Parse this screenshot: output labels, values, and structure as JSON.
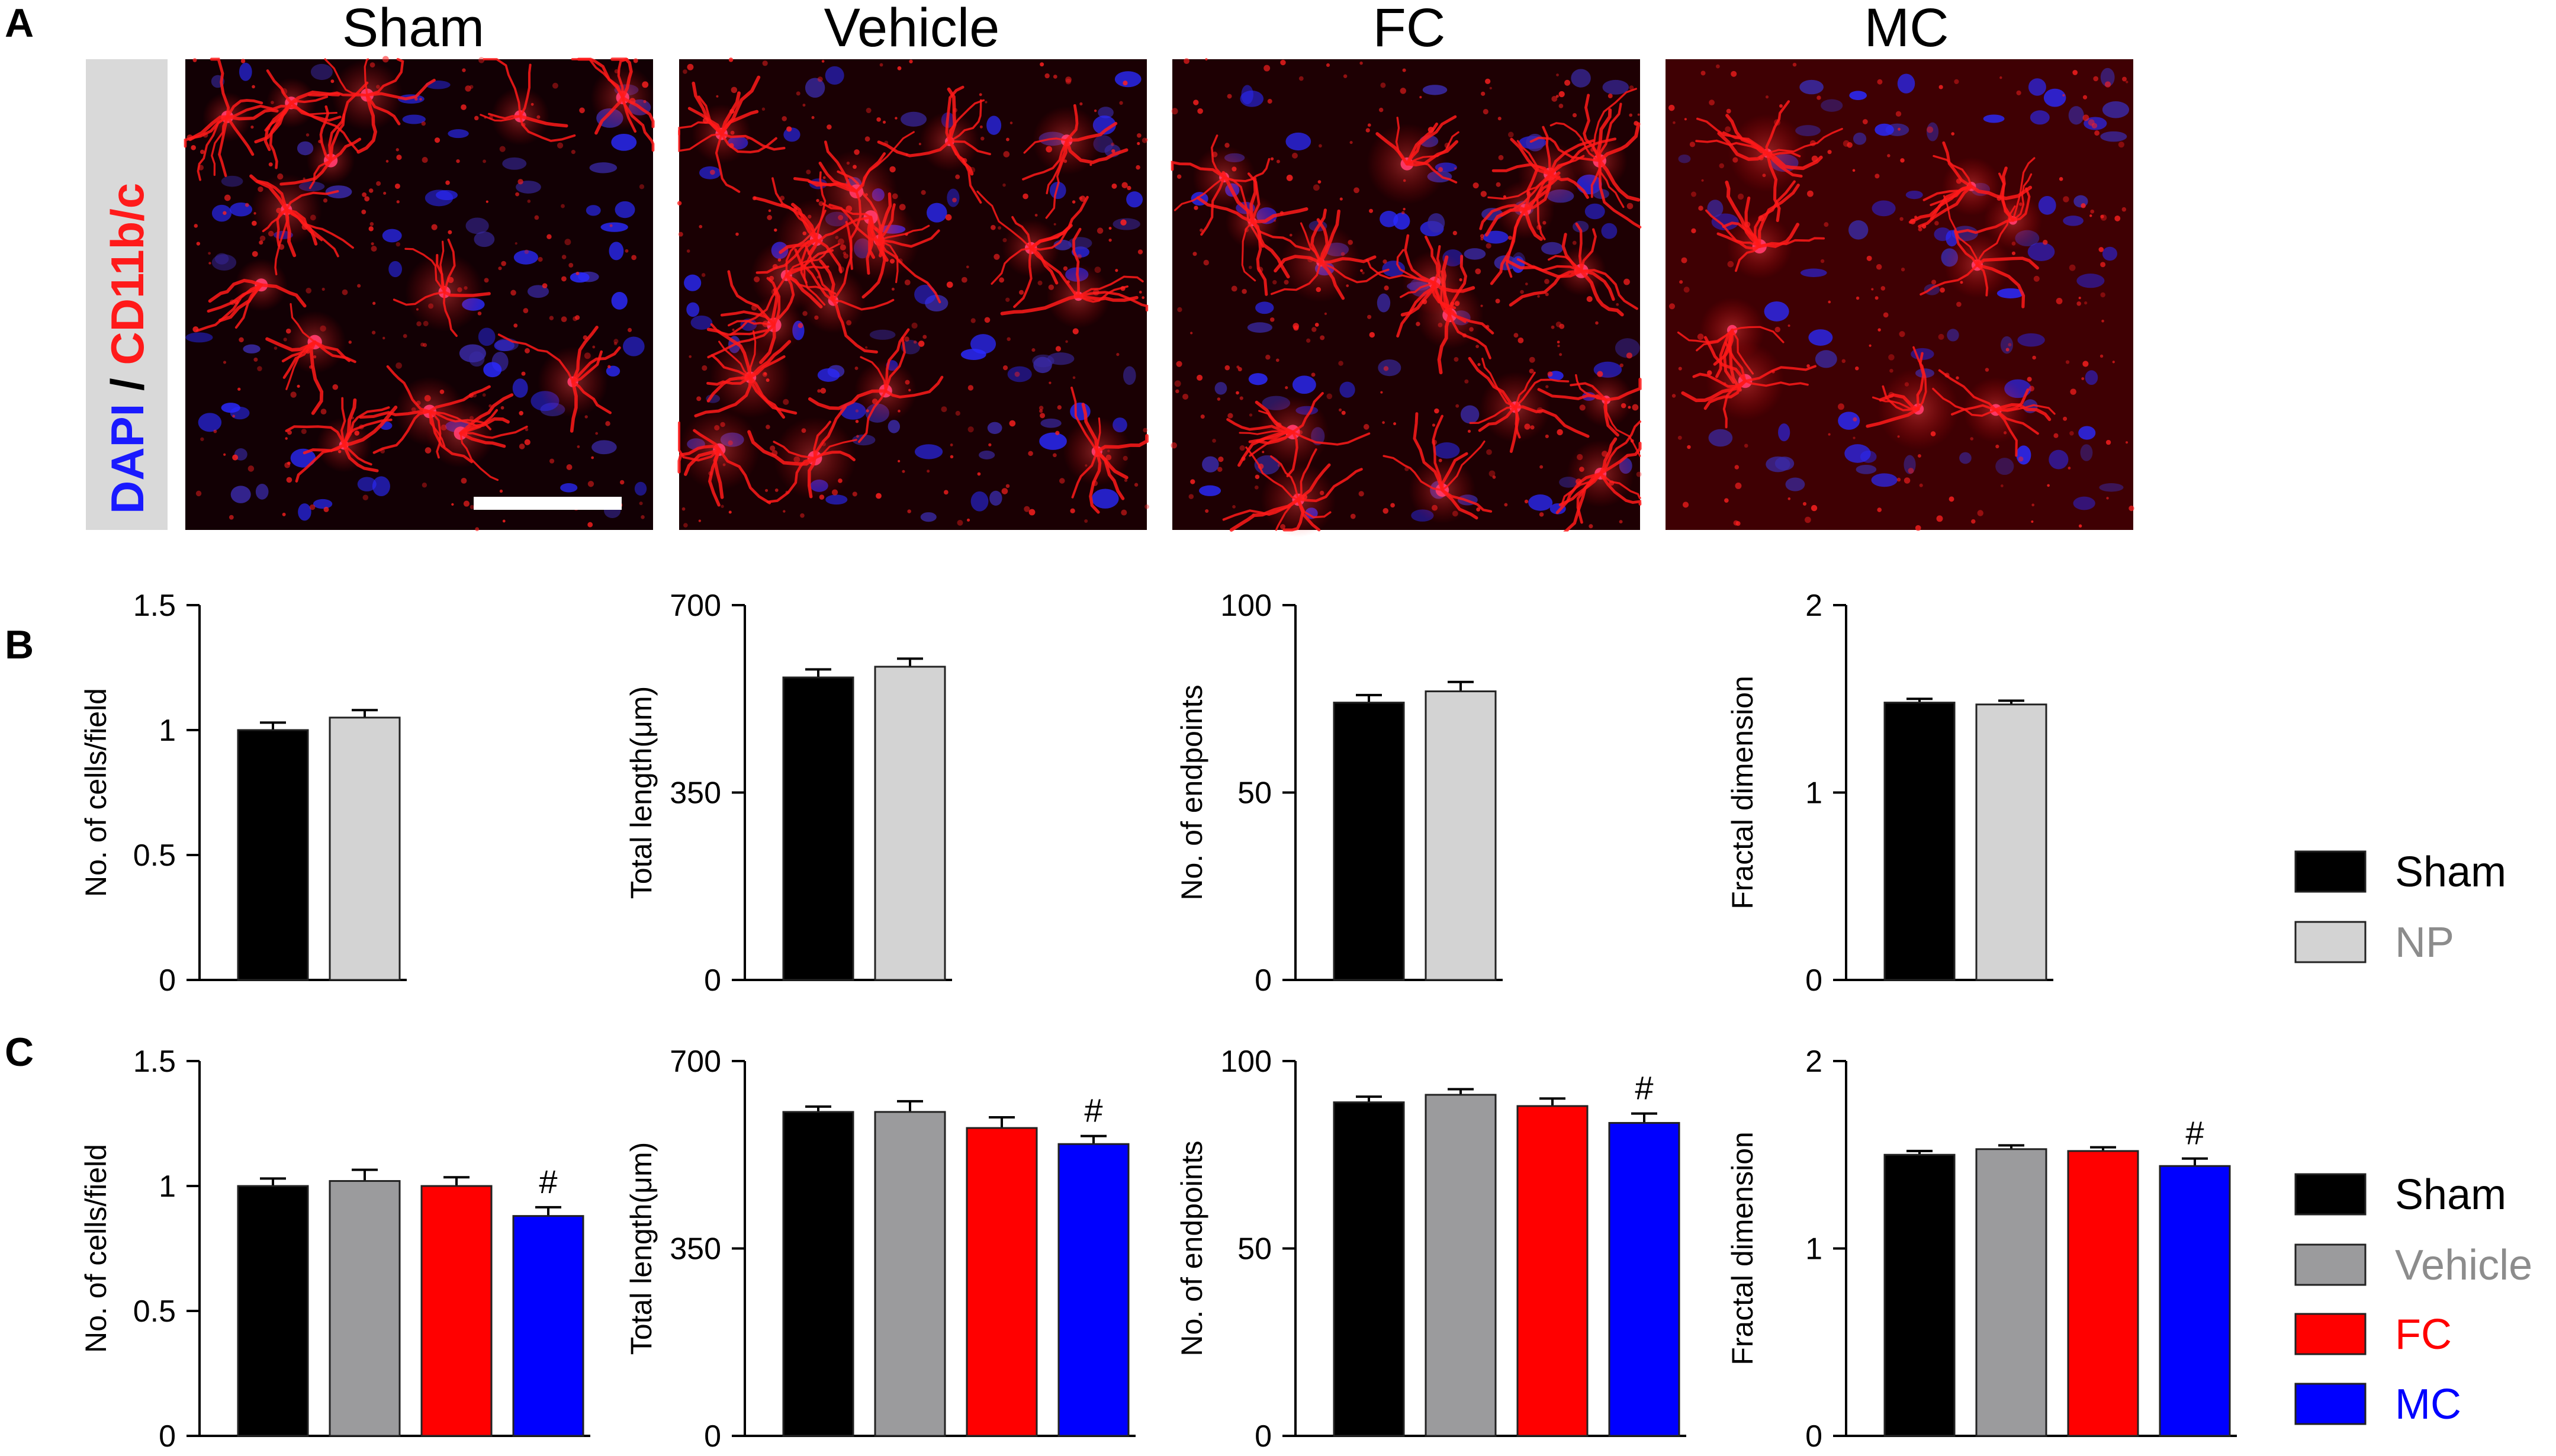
{
  "panel_labels": {
    "a": "A",
    "b": "B",
    "c": "C"
  },
  "micrographs": {
    "titles": [
      "Sham",
      "Vehicle",
      "FC",
      "MC"
    ],
    "density": [
      0.75,
      1.0,
      0.9,
      0.45
    ],
    "haze": [
      0.0,
      0.1,
      0.15,
      0.55
    ],
    "stain_parts": [
      "DAPI",
      " / ",
      "CD11b/c"
    ],
    "colors": {
      "dapi": "#1a1aff",
      "slash": "#000000",
      "cd11": "#ff1a1a"
    }
  },
  "colors": {
    "Sham": "#000000",
    "NP": "#d3d3d3",
    "Vehicle": "#9b9b9d",
    "FC": "#ff0000",
    "MC": "#0000ff",
    "legend_NP_text": "#8c8c8c",
    "legend_Vehicle_text": "#8c8c8c",
    "legend_FC_text": "#ff0000",
    "legend_MC_text": "#0000ff"
  },
  "legend_b": [
    "Sham",
    "NP"
  ],
  "legend_c": [
    "Sham",
    "Vehicle",
    "FC",
    "MC"
  ],
  "chart_data": [
    {
      "type": "bar",
      "panel": "B",
      "ylabel": "No. of cells/field",
      "ylim": [
        0,
        1.5
      ],
      "yticks": [
        "0",
        "0.5",
        "1",
        "1.5"
      ],
      "yticks_values": [
        0,
        0.5,
        1,
        1.5
      ],
      "categories": [
        "Sham",
        "NP"
      ],
      "values": [
        1.0,
        1.05
      ],
      "errors": [
        0.03,
        0.03
      ],
      "marks": [
        "",
        ""
      ]
    },
    {
      "type": "bar",
      "panel": "B",
      "ylabel": "Total length(μm)",
      "ylim": [
        0,
        700
      ],
      "yticks": [
        "0",
        "350",
        "700"
      ],
      "yticks_values": [
        0,
        350,
        700
      ],
      "categories": [
        "Sham",
        "NP"
      ],
      "values": [
        565,
        585
      ],
      "errors": [
        15,
        15
      ],
      "marks": [
        "",
        ""
      ]
    },
    {
      "type": "bar",
      "panel": "B",
      "ylabel": "No. of endpoints",
      "ylim": [
        0,
        100
      ],
      "yticks": [
        "0",
        "50",
        "100"
      ],
      "yticks_values": [
        0,
        50,
        100
      ],
      "categories": [
        "Sham",
        "NP"
      ],
      "values": [
        74,
        77
      ],
      "errors": [
        2,
        2.5
      ],
      "marks": [
        "",
        ""
      ]
    },
    {
      "type": "bar",
      "panel": "B",
      "ylabel": "Fractal dimension",
      "ylim": [
        0,
        2
      ],
      "yticks": [
        "0",
        "1",
        "2"
      ],
      "yticks_values": [
        0,
        1,
        2
      ],
      "categories": [
        "Sham",
        "NP"
      ],
      "values": [
        1.48,
        1.47
      ],
      "errors": [
        0.02,
        0.02
      ],
      "marks": [
        "",
        ""
      ]
    },
    {
      "type": "bar",
      "panel": "C",
      "ylabel": "No. of cells/field",
      "ylim": [
        0,
        1.5
      ],
      "yticks": [
        "0",
        "0.5",
        "1",
        "1.5"
      ],
      "yticks_values": [
        0,
        0.5,
        1,
        1.5
      ],
      "categories": [
        "Sham",
        "Vehicle",
        "FC",
        "MC"
      ],
      "values": [
        1.0,
        1.02,
        1.0,
        0.88
      ],
      "errors": [
        0.03,
        0.045,
        0.035,
        0.035
      ],
      "marks": [
        "",
        "",
        "",
        "#"
      ]
    },
    {
      "type": "bar",
      "panel": "C",
      "ylabel": "Total length(μm)",
      "ylim": [
        0,
        700
      ],
      "yticks": [
        "0",
        "350",
        "700"
      ],
      "yticks_values": [
        0,
        350,
        700
      ],
      "categories": [
        "Sham",
        "Vehicle",
        "FC",
        "MC"
      ],
      "values": [
        605,
        605,
        575,
        545
      ],
      "errors": [
        10,
        20,
        20,
        15
      ],
      "marks": [
        "",
        "",
        "",
        "#"
      ]
    },
    {
      "type": "bar",
      "panel": "C",
      "ylabel": "No. of endpoints",
      "ylim": [
        0,
        100
      ],
      "yticks": [
        "0",
        "50",
        "100"
      ],
      "yticks_values": [
        0,
        50,
        100
      ],
      "categories": [
        "Sham",
        "Vehicle",
        "FC",
        "MC"
      ],
      "values": [
        89,
        91,
        88,
        83.5
      ],
      "errors": [
        1.5,
        1.5,
        2,
        2.5
      ],
      "marks": [
        "",
        "",
        "",
        "#"
      ]
    },
    {
      "type": "bar",
      "panel": "C",
      "ylabel": "Fractal dimension",
      "ylim": [
        0,
        2
      ],
      "yticks": [
        "0",
        "1",
        "2"
      ],
      "yticks_values": [
        0,
        1,
        2
      ],
      "categories": [
        "Sham",
        "Vehicle",
        "FC",
        "MC"
      ],
      "values": [
        1.5,
        1.53,
        1.52,
        1.44
      ],
      "errors": [
        0.02,
        0.02,
        0.02,
        0.04
      ],
      "marks": [
        "",
        "",
        "",
        "#"
      ]
    }
  ]
}
